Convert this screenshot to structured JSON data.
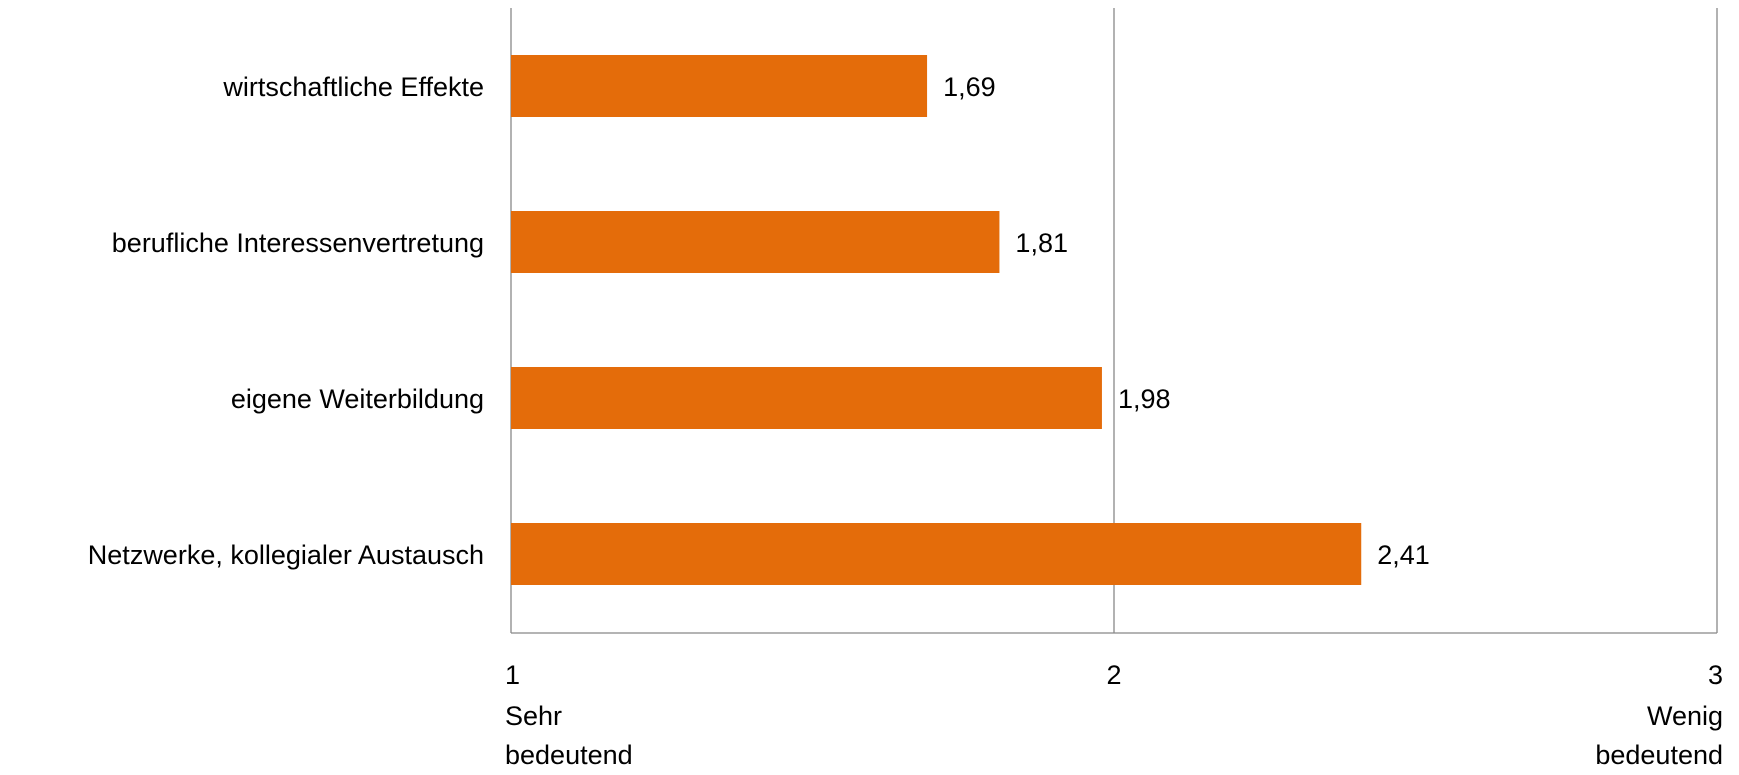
{
  "chart_data": {
    "type": "bar",
    "orientation": "horizontal",
    "categories": [
      "wirtschaftliche Effekte",
      "berufliche Interessenvertretung",
      "eigene Weiterbildung",
      "Netzwerke, kollegialer Austausch"
    ],
    "values": [
      1.69,
      1.81,
      1.98,
      2.41
    ],
    "data_labels": [
      "1,69",
      "1,81",
      "1,98",
      "2,41"
    ],
    "xlim": [
      1,
      3
    ],
    "x_ticks": [
      {
        "value": 1,
        "label": "1",
        "sublabel_lines": [
          "Sehr",
          "bedeutend"
        ]
      },
      {
        "value": 2,
        "label": "2",
        "sublabel_lines": []
      },
      {
        "value": 3,
        "label": "3",
        "sublabel_lines": [
          "Wenig",
          "bedeutend"
        ]
      }
    ],
    "grid": "vertical",
    "legend": "none",
    "bar_color": "#E46C0A",
    "grid_color": "#888888"
  }
}
